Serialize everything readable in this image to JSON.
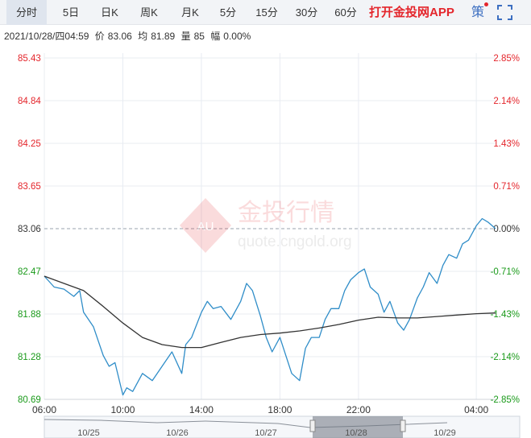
{
  "tabs": [
    {
      "label": "分时",
      "active": true
    },
    {
      "label": "5日",
      "active": false
    },
    {
      "label": "日K",
      "active": false
    },
    {
      "label": "周K",
      "active": false
    },
    {
      "label": "月K",
      "active": false
    },
    {
      "label": "5分",
      "active": false
    },
    {
      "label": "15分",
      "active": false
    },
    {
      "label": "30分",
      "active": false
    },
    {
      "label": "60分",
      "active": false
    }
  ],
  "app_link": "打开金投网APP",
  "strategy_label": "策",
  "info": {
    "datetime": "2021/10/28/四04:59",
    "price_label": "价",
    "price": "83.06",
    "avg_label": "均",
    "avg": "81.89",
    "volume_label": "量",
    "volume": "85",
    "change_label": "幅",
    "change": "0.00%"
  },
  "watermark": {
    "brand": "金投行情",
    "url": "quote.cngold.org",
    "badge": "AU"
  },
  "colors": {
    "up": "#e4262c",
    "down": "#1a9a1a",
    "price_line": "#2f8dc8",
    "avg_line": "#333333",
    "grid": "#e8ecf2"
  },
  "chart_data": {
    "type": "line",
    "reference_price": 83.06,
    "ylim": [
      80.69,
      85.43
    ],
    "y_ticks": [
      "85.43",
      "84.84",
      "84.25",
      "83.65",
      "83.06",
      "82.47",
      "81.88",
      "81.28",
      "80.69"
    ],
    "pct_ticks": [
      "2.85%",
      "2.14%",
      "1.43%",
      "0.71%",
      "0.00%",
      "-0.71%",
      "-1.43%",
      "-2.14%",
      "-2.85%"
    ],
    "x_ticks": [
      "06:00",
      "10:00",
      "14:00",
      "18:00",
      "22:00",
      "04:00"
    ],
    "x_tick_hours": [
      0,
      4,
      8,
      12,
      16,
      22
    ],
    "x_range_hours": [
      0,
      22.98
    ],
    "series": [
      {
        "x": [
          0,
          0.5,
          1.0,
          1.5,
          1.8,
          2.0,
          2.5,
          3.0,
          3.3,
          3.6,
          4.0,
          4.2,
          4.5,
          5.0,
          5.5,
          6.0,
          6.5,
          7.0,
          7.2,
          7.5,
          8.0,
          8.3,
          8.6,
          9.0,
          9.5,
          10.0,
          10.3,
          10.6,
          11.0,
          11.3,
          11.6,
          12.0,
          12.3,
          12.6,
          13.0,
          13.3,
          13.6,
          14.0,
          14.3,
          14.6,
          15.0,
          15.3,
          15.6,
          16.0,
          16.3,
          16.6,
          17.0,
          17.3,
          17.6,
          18.0,
          18.3,
          18.6,
          19.0,
          19.3,
          19.6,
          20.0,
          20.3,
          20.6,
          21.0,
          21.3,
          21.6,
          22.0,
          22.3,
          22.6,
          22.98
        ],
        "y": [
          82.4,
          82.25,
          82.22,
          82.12,
          82.2,
          81.9,
          81.7,
          81.3,
          81.15,
          81.2,
          80.75,
          80.85,
          80.8,
          81.05,
          80.95,
          81.15,
          81.35,
          81.05,
          81.45,
          81.55,
          81.9,
          82.05,
          81.95,
          81.98,
          81.8,
          82.05,
          82.3,
          82.2,
          81.85,
          81.55,
          81.35,
          81.55,
          81.3,
          81.05,
          80.95,
          81.4,
          81.55,
          81.55,
          81.8,
          81.95,
          81.95,
          82.2,
          82.35,
          82.45,
          82.5,
          82.25,
          82.15,
          81.9,
          82.05,
          81.75,
          81.65,
          81.8,
          82.1,
          82.25,
          82.45,
          82.3,
          82.55,
          82.7,
          82.65,
          82.85,
          82.9,
          83.1,
          83.2,
          83.15,
          83.06
        ]
      },
      {
        "x": [
          0,
          1.0,
          2.0,
          3.0,
          4.0,
          5.0,
          6.0,
          7.0,
          8.0,
          9.0,
          10.0,
          11.0,
          12.0,
          13.0,
          14.0,
          15.0,
          16.0,
          17.0,
          18.0,
          19.0,
          20.0,
          21.0,
          22.0,
          22.98
        ],
        "y": [
          82.4,
          82.3,
          82.2,
          81.98,
          81.75,
          81.55,
          81.45,
          81.41,
          81.41,
          81.48,
          81.55,
          81.59,
          81.61,
          81.64,
          81.68,
          81.73,
          81.79,
          81.83,
          81.82,
          81.82,
          81.84,
          81.86,
          81.88,
          81.89
        ]
      }
    ],
    "navigator": {
      "date_labels": [
        "10/25",
        "10/26",
        "10/27",
        "10/28",
        "10/29"
      ],
      "selected": "10/28"
    }
  }
}
